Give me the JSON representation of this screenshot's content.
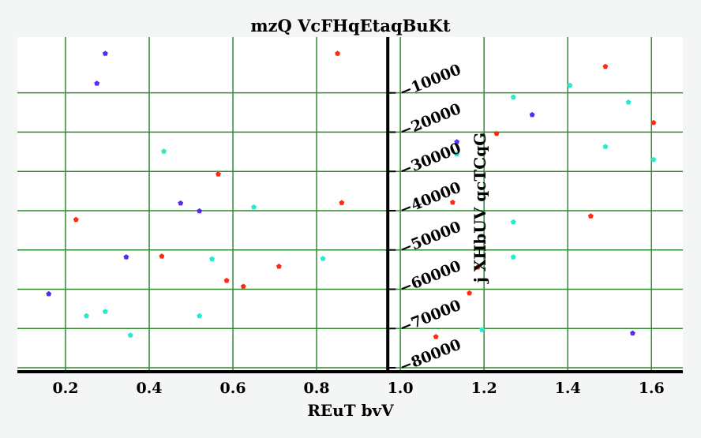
{
  "chart_data": {
    "type": "scatter",
    "title": "mzQ VcFHqEtaqBuKt",
    "xlabel": "REuT bvV",
    "ylabel": "j XHbUV qcTCqG",
    "xlim": [
      0.085,
      1.675
    ],
    "ylim": [
      -81000,
      4200
    ],
    "x_ticks": [
      0.2,
      0.4,
      0.6,
      0.8,
      1.0,
      1.2,
      1.4,
      1.6
    ],
    "x_tick_labels": [
      "0.2",
      "0.4",
      "0.6",
      "0.8",
      "1.0",
      "1.2",
      "1.4",
      "1.6"
    ],
    "y_ticks": [
      -10000,
      -20000,
      -30000,
      -40000,
      -50000,
      -60000,
      -70000,
      -80000
    ],
    "y_tick_labels": [
      "−10000",
      "−20000",
      "−30000",
      "−40000",
      "−50000",
      "−60000",
      "−70000",
      "−80000"
    ],
    "y_axis_position_x": 0.97,
    "grid": true,
    "legend": "none",
    "colors": {
      "background": "#f3f6f5",
      "plot_background": "#ffffff",
      "grid": "#2e8b2e",
      "axis": "#000000"
    },
    "series": [
      {
        "color": "#ff2a14",
        "points": [
          [
            0.85,
            0
          ],
          [
            1.49,
            -3300
          ],
          [
            1.605,
            -17600
          ],
          [
            1.23,
            -20400
          ],
          [
            0.565,
            -30700
          ],
          [
            0.86,
            -38000
          ],
          [
            1.125,
            -37900
          ],
          [
            1.455,
            -41400
          ],
          [
            0.225,
            -42300
          ],
          [
            0.43,
            -51600
          ],
          [
            0.71,
            -54200
          ],
          [
            1.185,
            -54400
          ],
          [
            0.585,
            -57800
          ],
          [
            0.625,
            -59300
          ],
          [
            1.165,
            -61000
          ],
          [
            1.085,
            -72100
          ]
        ]
      },
      {
        "color": "#5b2bf0",
        "points": [
          [
            0.295,
            0
          ],
          [
            0.275,
            -7600
          ],
          [
            1.315,
            -15600
          ],
          [
            1.135,
            -22500
          ],
          [
            0.475,
            -38100
          ],
          [
            0.52,
            -40100
          ],
          [
            0.345,
            -51800
          ],
          [
            0.16,
            -61200
          ],
          [
            1.555,
            -71200
          ]
        ]
      },
      {
        "color": "#2be8d0",
        "points": [
          [
            1.405,
            -8100
          ],
          [
            1.27,
            -11100
          ],
          [
            1.545,
            -12400
          ],
          [
            1.49,
            -23700
          ],
          [
            0.435,
            -24900
          ],
          [
            1.135,
            -25600
          ],
          [
            1.605,
            -27000
          ],
          [
            0.65,
            -39100
          ],
          [
            1.27,
            -42900
          ],
          [
            0.55,
            -52300
          ],
          [
            0.815,
            -52200
          ],
          [
            1.27,
            -51800
          ],
          [
            0.295,
            -65700
          ],
          [
            0.25,
            -66800
          ],
          [
            0.52,
            -66800
          ],
          [
            1.195,
            -70300
          ],
          [
            0.355,
            -71700
          ]
        ]
      }
    ]
  }
}
